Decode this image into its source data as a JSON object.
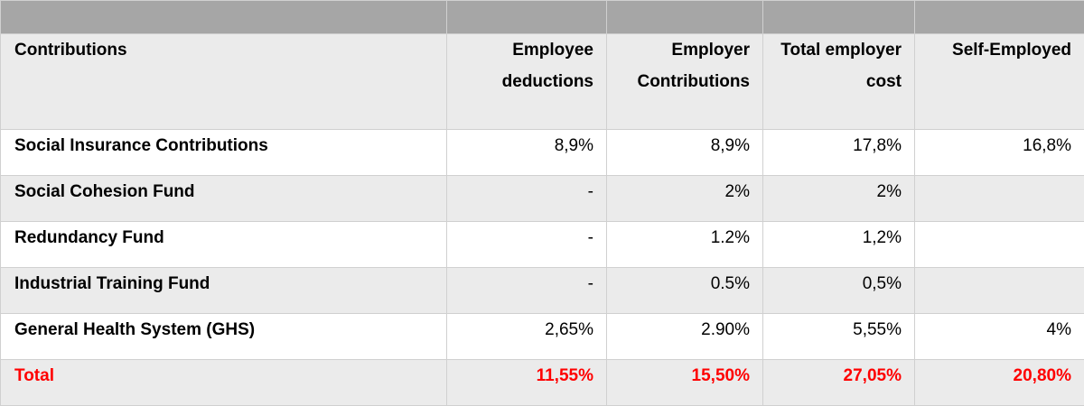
{
  "table": {
    "headers": [
      "Contributions",
      "Employee deductions",
      "Employer Contributions",
      "Total employer cost",
      "Self-Employed"
    ],
    "rows": [
      {
        "label": "Social Insurance Contributions",
        "employee": "8,9%",
        "employer": "8,9%",
        "total": "17,8%",
        "self_employed": "16,8%"
      },
      {
        "label": "Social Cohesion Fund",
        "employee": "-",
        "employer": "2%",
        "total": "2%",
        "self_employed": ""
      },
      {
        "label": "Redundancy Fund",
        "employee": "-",
        "employer": "1.2%",
        "total": "1,2%",
        "self_employed": ""
      },
      {
        "label": "Industrial Training Fund",
        "employee": "-",
        "employer": "0.5%",
        "total": "0,5%",
        "self_employed": ""
      },
      {
        "label": "General Health System (GHS)",
        "employee": "2,65%",
        "employer": "2.90%",
        "total": "5,55%",
        "self_employed": "4%"
      }
    ],
    "total": {
      "label": "Total",
      "employee": "11,55%",
      "employer": "15,50%",
      "total": "27,05%",
      "self_employed": "20,80%"
    }
  },
  "colors": {
    "header_bar": "#a6a6a6",
    "row_alt": "#ebebeb",
    "total_text": "#ff0000"
  }
}
